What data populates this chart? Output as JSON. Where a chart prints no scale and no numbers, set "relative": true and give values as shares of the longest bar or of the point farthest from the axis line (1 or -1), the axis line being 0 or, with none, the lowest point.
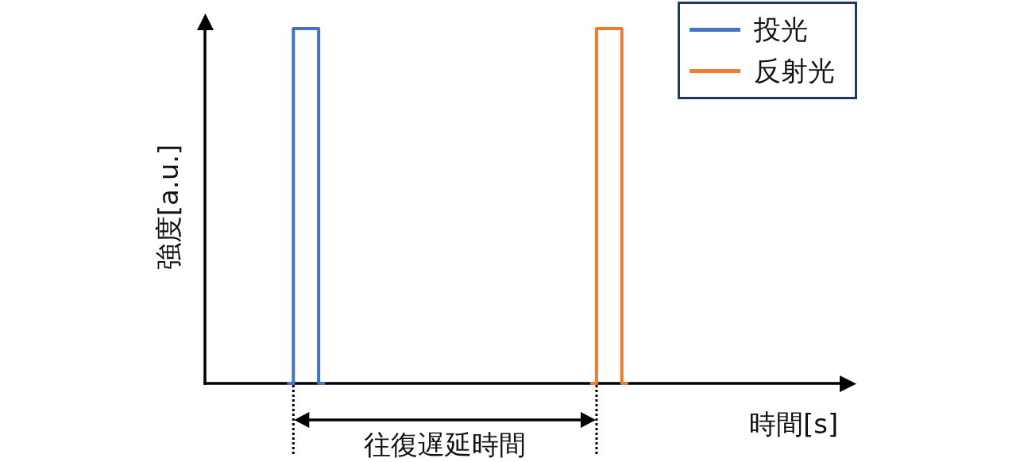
{
  "chart_data": {
    "type": "step",
    "relative": true,
    "categories": [
      null,
      null,
      null,
      null,
      null,
      null,
      null,
      null,
      null,
      null,
      null,
      null,
      null,
      null,
      null,
      null,
      null,
      null,
      null,
      null,
      null,
      null,
      null,
      null,
      null,
      null,
      null,
      null,
      null,
      null,
      null,
      null,
      null,
      null,
      null,
      null,
      null,
      null,
      null,
      null,
      null,
      null,
      null,
      null,
      null,
      null,
      null,
      null,
      null,
      null,
      null
    ],
    "series": [
      {
        "name": "投光",
        "color": "#4472c4",
        "values": [
          null,
          null,
          null,
          null,
          null,
          null,
          0,
          1,
          1,
          0,
          null,
          null,
          null,
          null,
          null,
          null,
          null,
          null,
          null,
          null,
          null,
          null,
          null,
          null,
          null,
          null,
          null,
          null,
          null,
          null,
          null,
          null,
          null,
          null,
          null,
          null,
          null,
          null,
          null,
          null,
          null,
          null,
          null,
          null,
          null,
          null,
          null,
          null,
          null,
          null,
          null
        ]
      },
      {
        "name": "反射光",
        "color": "#ed7d31",
        "values": [
          null,
          null,
          null,
          null,
          null,
          null,
          null,
          null,
          null,
          null,
          null,
          null,
          null,
          null,
          null,
          null,
          null,
          null,
          null,
          null,
          null,
          null,
          null,
          null,
          null,
          null,
          null,
          null,
          null,
          null,
          0,
          1,
          1,
          0,
          null,
          null,
          null,
          null,
          null,
          null,
          null,
          null,
          null,
          null,
          null,
          null,
          null,
          null,
          null,
          null,
          null
        ]
      }
    ],
    "xlabel": "時間[s]",
    "ylabel": "強度[a.u.]",
    "annotations": [
      "往復遅延時間"
    ],
    "legend": "top right",
    "marker": "none",
    "tick_labels": false
  }
}
